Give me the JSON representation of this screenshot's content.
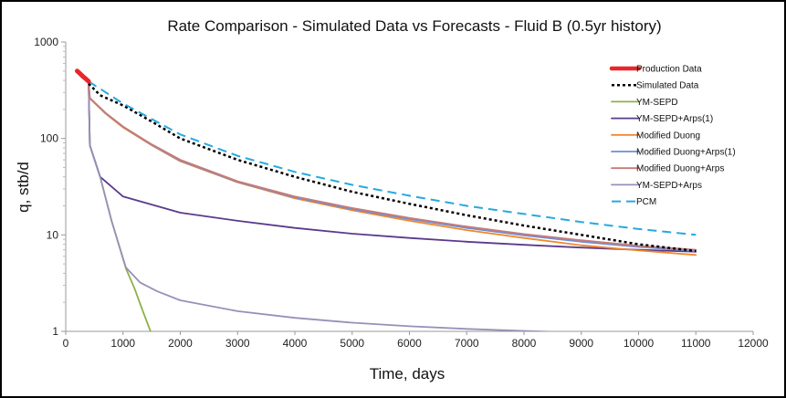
{
  "chart_data": {
    "type": "line",
    "title": "Rate Comparison - Simulated Data vs Forecasts - Fluid B (0.5yr history)",
    "xlabel": "Time, days",
    "ylabel": "q, stb/d",
    "xlim": [
      0,
      12000
    ],
    "ylim": [
      1,
      1000
    ],
    "yscale": "log",
    "x_ticks": [
      0,
      1000,
      2000,
      3000,
      4000,
      5000,
      6000,
      7000,
      8000,
      9000,
      10000,
      11000,
      12000
    ],
    "x_tick_labels": [
      "0",
      "1000",
      "2000",
      "3000",
      "4000",
      "5000",
      "6000",
      "7000",
      "8000",
      "9000",
      "10000",
      "11000",
      "12000"
    ],
    "y_ticks": [
      1,
      10,
      100,
      1000
    ],
    "y_tick_labels": [
      "1",
      "10",
      "100",
      "1000"
    ],
    "grid": false,
    "legend_position": "top-right",
    "series": [
      {
        "name": "Production Data",
        "color": "#e8262b",
        "dash": "solid",
        "width": 5,
        "points": [
          [
            200,
            500
          ],
          [
            250,
            470
          ],
          [
            300,
            440
          ],
          [
            350,
            415
          ],
          [
            400,
            390
          ]
        ]
      },
      {
        "name": "Simulated Data",
        "color": "#000000",
        "dash": "dotted",
        "width": 2.5,
        "points": [
          [
            400,
            370
          ],
          [
            600,
            280
          ],
          [
            1000,
            220
          ],
          [
            1500,
            150
          ],
          [
            2000,
            100
          ],
          [
            3000,
            60
          ],
          [
            4000,
            40
          ],
          [
            5000,
            28
          ],
          [
            6000,
            21
          ],
          [
            7000,
            16
          ],
          [
            8000,
            12.5
          ],
          [
            9000,
            10
          ],
          [
            10000,
            8
          ],
          [
            11000,
            6.8
          ]
        ]
      },
      {
        "name": "YM-SEPD",
        "color": "#8fb04a",
        "dash": "solid",
        "width": 1.8,
        "points": [
          [
            400,
            370
          ],
          [
            420,
            85
          ],
          [
            600,
            40
          ],
          [
            800,
            14
          ],
          [
            1050,
            4.5
          ],
          [
            1200,
            2.8
          ],
          [
            1350,
            1.6
          ],
          [
            1480,
            1
          ]
        ]
      },
      {
        "name": "YM-SEPD+Arps(1)",
        "color": "#5b3a8c",
        "dash": "solid",
        "width": 1.8,
        "points": [
          [
            400,
            370
          ],
          [
            420,
            85
          ],
          [
            600,
            40
          ],
          [
            1000,
            25
          ],
          [
            2000,
            17
          ],
          [
            3000,
            14
          ],
          [
            4000,
            11.8
          ],
          [
            5000,
            10.3
          ],
          [
            6000,
            9.3
          ],
          [
            7000,
            8.5
          ],
          [
            8000,
            7.9
          ],
          [
            9000,
            7.4
          ],
          [
            10000,
            7
          ],
          [
            11000,
            6.7
          ]
        ]
      },
      {
        "name": "Modified Duong",
        "color": "#f0892e",
        "dash": "solid",
        "width": 1.8,
        "points": [
          [
            400,
            370
          ],
          [
            420,
            260
          ],
          [
            700,
            180
          ],
          [
            1000,
            130
          ],
          [
            1500,
            85
          ],
          [
            2000,
            58
          ],
          [
            3000,
            35
          ],
          [
            4000,
            24
          ],
          [
            5000,
            18
          ],
          [
            6000,
            14
          ],
          [
            7000,
            11.2
          ],
          [
            8000,
            9.3
          ],
          [
            9000,
            7.8
          ],
          [
            10000,
            6.9
          ],
          [
            11000,
            6.2
          ]
        ]
      },
      {
        "name": "Modified Duong+Arps(1)",
        "color": "#6c8fd6",
        "dash": "solid",
        "width": 1.8,
        "points": [
          [
            400,
            370
          ],
          [
            420,
            262
          ],
          [
            700,
            182
          ],
          [
            1000,
            132
          ],
          [
            1500,
            86
          ],
          [
            2000,
            59
          ],
          [
            3000,
            35.5
          ],
          [
            4000,
            24.5
          ],
          [
            5000,
            18.5
          ],
          [
            6000,
            14.6
          ],
          [
            7000,
            11.8
          ],
          [
            8000,
            9.9
          ],
          [
            9000,
            8.5
          ],
          [
            10000,
            7.5
          ],
          [
            11000,
            6.8
          ]
        ]
      },
      {
        "name": "Modified Duong+Arps",
        "color": "#c97a78",
        "dash": "solid",
        "width": 1.8,
        "points": [
          [
            400,
            370
          ],
          [
            420,
            263
          ],
          [
            700,
            183
          ],
          [
            1000,
            133
          ],
          [
            1500,
            87
          ],
          [
            2000,
            60
          ],
          [
            3000,
            36
          ],
          [
            4000,
            25
          ],
          [
            5000,
            19
          ],
          [
            6000,
            15
          ],
          [
            7000,
            12.2
          ],
          [
            8000,
            10.2
          ],
          [
            9000,
            8.8
          ],
          [
            10000,
            7.7
          ],
          [
            11000,
            7
          ]
        ]
      },
      {
        "name": "YM-SEPD+Arps",
        "color": "#9a8fb8",
        "dash": "solid",
        "width": 1.8,
        "points": [
          [
            400,
            370
          ],
          [
            420,
            85
          ],
          [
            600,
            40
          ],
          [
            800,
            14
          ],
          [
            1050,
            4.6
          ],
          [
            1300,
            3.2
          ],
          [
            1600,
            2.6
          ],
          [
            2000,
            2.1
          ],
          [
            3000,
            1.62
          ],
          [
            4000,
            1.38
          ],
          [
            5000,
            1.23
          ],
          [
            6000,
            1.13
          ],
          [
            7000,
            1.06
          ],
          [
            8000,
            1.01
          ],
          [
            8500,
            0.99
          ]
        ]
      },
      {
        "name": "PCM",
        "color": "#27a9e0",
        "dash": "dashed",
        "width": 2,
        "points": [
          [
            400,
            390
          ],
          [
            1000,
            230
          ],
          [
            2000,
            110
          ],
          [
            3000,
            66
          ],
          [
            4000,
            45
          ],
          [
            5000,
            33
          ],
          [
            6000,
            25.5
          ],
          [
            7000,
            20
          ],
          [
            8000,
            16.5
          ],
          [
            9000,
            13.6
          ],
          [
            10000,
            11.5
          ],
          [
            11000,
            10
          ]
        ]
      }
    ]
  }
}
